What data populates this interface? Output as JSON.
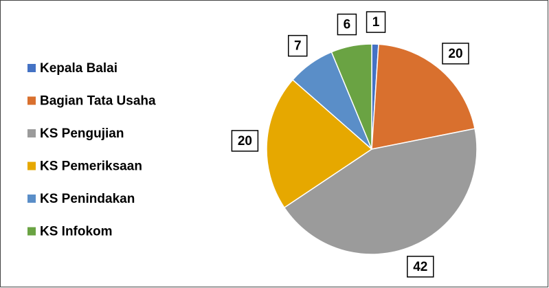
{
  "chart_data": {
    "type": "pie",
    "categories": [
      "Kepala Balai",
      "Bagian Tata Usaha",
      "KS Pengujian",
      "KS Pemeriksaan",
      "KS Penindakan",
      "KS Infokom"
    ],
    "values": [
      1,
      20,
      42,
      20,
      7,
      6
    ],
    "colors": [
      "#4472c4",
      "#d9702e",
      "#9b9b9b",
      "#e6a800",
      "#5a8ec8",
      "#6aa343"
    ],
    "legend": "left"
  }
}
